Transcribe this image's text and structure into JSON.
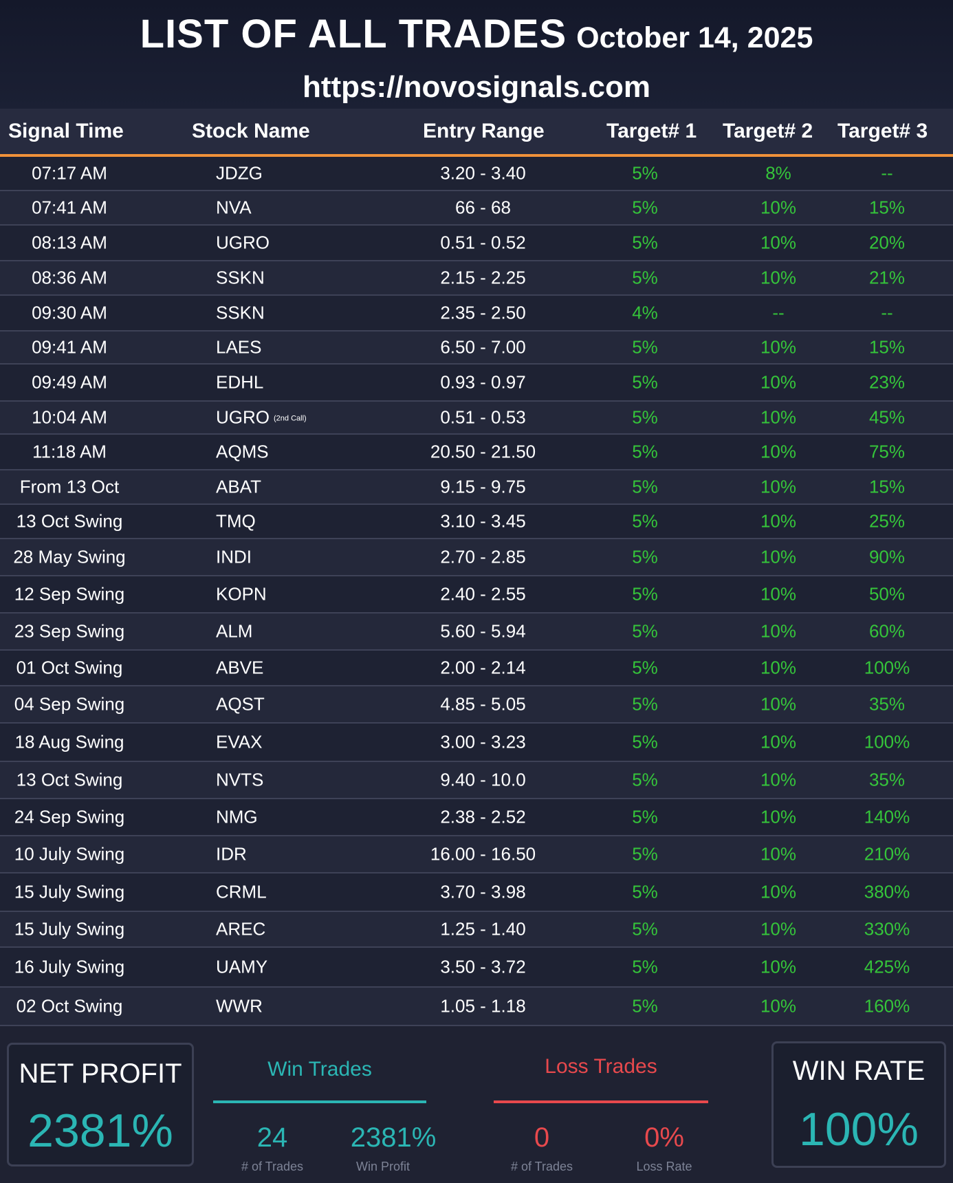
{
  "header": {
    "title": "LIST OF ALL TRADES",
    "date": "October 14, 2025",
    "url": "https://novosignals.com"
  },
  "columns": {
    "signal_time": "Signal Time",
    "stock_name": "Stock Name",
    "entry_range": "Entry Range",
    "target1": "Target# 1",
    "target2": "Target# 2",
    "target3": "Target# 3"
  },
  "rows": [
    {
      "time": "07:17 AM",
      "stock": "JDZG",
      "note": "",
      "entry": "3.20 - 3.40",
      "t1": "5%",
      "t2": "8%",
      "t3": "--"
    },
    {
      "time": "07:41 AM",
      "stock": "NVA",
      "note": "",
      "entry": "66 - 68",
      "t1": "5%",
      "t2": "10%",
      "t3": "15%"
    },
    {
      "time": "08:13 AM",
      "stock": "UGRO",
      "note": "",
      "entry": "0.51 - 0.52",
      "t1": "5%",
      "t2": "10%",
      "t3": "20%"
    },
    {
      "time": "08:36 AM",
      "stock": "SSKN",
      "note": "",
      "entry": "2.15 - 2.25",
      "t1": "5%",
      "t2": "10%",
      "t3": "21%"
    },
    {
      "time": "09:30 AM",
      "stock": "SSKN",
      "note": "",
      "entry": "2.35 - 2.50",
      "t1": "4%",
      "t2": "--",
      "t3": "--"
    },
    {
      "time": "09:41 AM",
      "stock": "LAES",
      "note": "",
      "entry": "6.50 - 7.00",
      "t1": "5%",
      "t2": "10%",
      "t3": "15%"
    },
    {
      "time": "09:49 AM",
      "stock": "EDHL",
      "note": "",
      "entry": "0.93 - 0.97",
      "t1": "5%",
      "t2": "10%",
      "t3": "23%"
    },
    {
      "time": "10:04 AM",
      "stock": "UGRO",
      "note": "(2nd Call)",
      "entry": "0.51 - 0.53",
      "t1": "5%",
      "t2": "10%",
      "t3": "45%"
    },
    {
      "time": "11:18 AM",
      "stock": "AQMS",
      "note": "",
      "entry": "20.50 - 21.50",
      "t1": "5%",
      "t2": "10%",
      "t3": "75%"
    },
    {
      "time": "From 13 Oct",
      "stock": "ABAT",
      "note": "",
      "entry": "9.15 - 9.75",
      "t1": "5%",
      "t2": "10%",
      "t3": "15%"
    },
    {
      "time": "13 Oct Swing",
      "stock": "TMQ",
      "note": "",
      "entry": "3.10 - 3.45",
      "t1": "5%",
      "t2": "10%",
      "t3": "25%"
    },
    {
      "time": "28 May Swing",
      "stock": "INDI",
      "note": "",
      "entry": "2.70 - 2.85",
      "t1": "5%",
      "t2": "10%",
      "t3": "90%"
    },
    {
      "time": "12 Sep Swing",
      "stock": "KOPN",
      "note": "",
      "entry": "2.40 - 2.55",
      "t1": "5%",
      "t2": "10%",
      "t3": "50%"
    },
    {
      "time": "23 Sep Swing",
      "stock": "ALM",
      "note": "",
      "entry": "5.60 - 5.94",
      "t1": "5%",
      "t2": "10%",
      "t3": "60%"
    },
    {
      "time": "01 Oct Swing",
      "stock": "ABVE",
      "note": "",
      "entry": "2.00 - 2.14",
      "t1": "5%",
      "t2": "10%",
      "t3": "100%"
    },
    {
      "time": "04 Sep Swing",
      "stock": "AQST",
      "note": "",
      "entry": "4.85 - 5.05",
      "t1": "5%",
      "t2": "10%",
      "t3": "35%"
    },
    {
      "time": "18 Aug Swing",
      "stock": "EVAX",
      "note": "",
      "entry": "3.00 - 3.23",
      "t1": "5%",
      "t2": "10%",
      "t3": "100%"
    },
    {
      "time": "13 Oct Swing",
      "stock": "NVTS",
      "note": "",
      "entry": "9.40 - 10.0",
      "t1": "5%",
      "t2": "10%",
      "t3": "35%"
    },
    {
      "time": "24 Sep Swing",
      "stock": "NMG",
      "note": "",
      "entry": "2.38 - 2.52",
      "t1": "5%",
      "t2": "10%",
      "t3": "140%"
    },
    {
      "time": "10 July Swing",
      "stock": "IDR",
      "note": "",
      "entry": "16.00 - 16.50",
      "t1": "5%",
      "t2": "10%",
      "t3": "210%"
    },
    {
      "time": "15 July Swing",
      "stock": "CRML",
      "note": "",
      "entry": "3.70 - 3.98",
      "t1": "5%",
      "t2": "10%",
      "t3": "380%"
    },
    {
      "time": "15 July Swing",
      "stock": "AREC",
      "note": "",
      "entry": "1.25 - 1.40",
      "t1": "5%",
      "t2": "10%",
      "t3": "330%"
    },
    {
      "time": "16 July Swing",
      "stock": "UAMY",
      "note": "",
      "entry": "3.50 - 3.72",
      "t1": "5%",
      "t2": "10%",
      "t3": "425%"
    },
    {
      "time": "02 Oct Swing",
      "stock": "WWR",
      "note": "",
      "entry": "1.05 - 1.18",
      "t1": "5%",
      "t2": "10%",
      "t3": "160%"
    }
  ],
  "summary": {
    "net_profit_label": "NET PROFIT",
    "net_profit_value": "2381%",
    "win_trades_label": "Win Trades",
    "win_count": "24",
    "win_count_label": "# of Trades",
    "win_profit": "2381%",
    "win_profit_label": "Win Profit",
    "loss_trades_label": "Loss Trades",
    "loss_count": "0",
    "loss_count_label": "# of Trades",
    "loss_rate": "0%",
    "loss_rate_label": "Loss Rate",
    "win_rate_label": "WIN RATE",
    "win_rate_value": "100%"
  },
  "colors": {
    "accent_orange": "#f0923a",
    "target_green": "#35c53a",
    "win_teal": "#2bb6b4",
    "loss_red": "#e8494d"
  }
}
